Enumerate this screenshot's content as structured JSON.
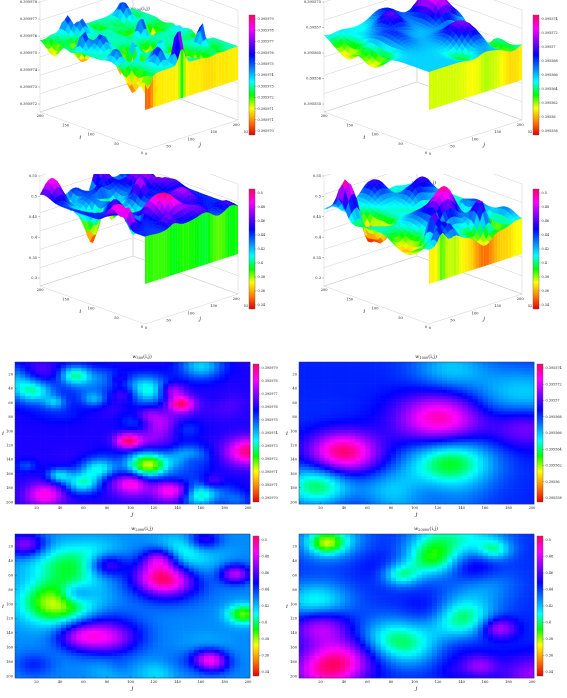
{
  "panels": [
    {
      "id": "p1",
      "kind": "surface",
      "title_main": "w",
      "title_sub": "500",
      "title_tail": "(i,j)",
      "xlabel": "j",
      "ylabel": "i",
      "zticks": [
        "0.395978",
        "0.395977",
        "0.395976",
        "0.395975",
        "0.395974",
        "0.395973",
        "0.395972"
      ],
      "xticks": [
        "0",
        "50",
        "100",
        "150",
        "200"
      ],
      "yticks": [
        "0",
        "50",
        "100",
        "150",
        "200"
      ],
      "cbar_ticks": [
        "0.395979",
        "0.395978",
        "0.395977",
        "0.395976",
        "0.395975",
        "0.395974",
        "0.395973",
        "0.395972",
        "0.395971",
        "0.395971",
        "0.395970"
      ],
      "right_tag": "52"
    },
    {
      "id": "p2",
      "kind": "surface",
      "title_main": "w",
      "title_sub": "1000",
      "title_tail": "(i,j)",
      "xlabel": "j",
      "ylabel": "i",
      "zticks": [
        "0.395575",
        "0.39557",
        "0.395565",
        "0.39556",
        "0.395555"
      ],
      "xticks": [
        "0",
        "50",
        "100",
        "150",
        "200"
      ],
      "yticks": [
        "0",
        "50",
        "100",
        "150",
        "200"
      ],
      "cbar_ticks": [
        "0.395574",
        "0.395572",
        "0.39557",
        "0.395568",
        "0.395566",
        "0.395564",
        "0.395562",
        "0.39556",
        "0.395558"
      ],
      "right_tag": "52"
    },
    {
      "id": "p3",
      "kind": "surface",
      "title_main": "w",
      "title_sub": "2000",
      "title_tail": "(i,j)",
      "xlabel": "j",
      "ylabel": "i",
      "zticks": [
        "0.55",
        "0.5",
        "0.45",
        "0.4",
        "0.35",
        "0.3"
      ],
      "xticks": [
        "0",
        "50",
        "100",
        "150",
        "200"
      ],
      "yticks": [
        "0",
        "50",
        "100",
        "150",
        "200"
      ],
      "cbar_ticks": [
        "0.5",
        "0.48",
        "0.46",
        "0.44",
        "0.42",
        "0.4",
        "0.38",
        "0.36",
        "0.34"
      ],
      "right_tag": "52"
    },
    {
      "id": "p4",
      "kind": "surface",
      "title_main": "w",
      "title_sub": "20000",
      "title_tail": "(i,j)",
      "xlabel": "j",
      "ylabel": "i",
      "zticks": [
        "0.55",
        "0.5",
        "0.45",
        "0.4",
        "0.35",
        "0.3"
      ],
      "xticks": [
        "0",
        "50",
        "100",
        "150",
        "200"
      ],
      "yticks": [
        "0",
        "50",
        "100",
        "150",
        "200"
      ],
      "cbar_ticks": [
        "0.5",
        "0.48",
        "0.46",
        "0.44",
        "0.42",
        "0.4",
        "0.38",
        "0.36",
        "0.34"
      ],
      "right_tag": "52"
    },
    {
      "id": "p5",
      "kind": "heatmap",
      "title_main": "w",
      "title_sub": "500",
      "title_tail": "(i,j)",
      "xlabel": "j",
      "ylabel": "i",
      "xticks": [
        "20",
        "40",
        "60",
        "80",
        "100",
        "120",
        "140",
        "160",
        "180",
        "200"
      ],
      "yticks": [
        "20",
        "40",
        "60",
        "80",
        "100",
        "120",
        "140",
        "160",
        "180",
        "200"
      ],
      "cbar_ticks": [
        "0.395979",
        "0.395978",
        "0.395977",
        "0.395976",
        "0.395975",
        "0.395974",
        "0.395973",
        "0.395972",
        "0.395971",
        "0.395971",
        "0.395970"
      ]
    },
    {
      "id": "p6",
      "kind": "heatmap",
      "title_main": "w",
      "title_sub": "1000",
      "title_tail": "(i,j)",
      "xlabel": "j",
      "ylabel": "i",
      "xticks": [
        "20",
        "40",
        "60",
        "80",
        "100",
        "120",
        "140",
        "160",
        "180",
        "200"
      ],
      "yticks": [
        "20",
        "40",
        "60",
        "80",
        "100",
        "120",
        "140",
        "160",
        "180",
        "200"
      ],
      "cbar_ticks": [
        "0.395574",
        "0.395572",
        "0.39557",
        "0.395568",
        "0.395566",
        "0.395564",
        "0.395562",
        "0.39556",
        "0.395558"
      ]
    },
    {
      "id": "p7",
      "kind": "heatmap",
      "title_main": "w",
      "title_sub": "2000",
      "title_tail": "(i,j)",
      "xlabel": "j",
      "ylabel": "i",
      "xticks": [
        "20",
        "40",
        "60",
        "80",
        "100",
        "120",
        "140",
        "160",
        "180",
        "200"
      ],
      "yticks": [
        "20",
        "40",
        "60",
        "80",
        "100",
        "120",
        "140",
        "160",
        "180",
        "200"
      ],
      "cbar_ticks": [
        "0.5",
        "0.48",
        "0.46",
        "0.44",
        "0.42",
        "0.4",
        "0.38",
        "0.36",
        "0.34"
      ]
    },
    {
      "id": "p8",
      "kind": "heatmap",
      "title_main": "w",
      "title_sub": "20000",
      "title_tail": "(i,j)",
      "xlabel": "j",
      "ylabel": "i",
      "xticks": [
        "20",
        "40",
        "60",
        "80",
        "100",
        "120",
        "140",
        "160",
        "180",
        "200"
      ],
      "yticks": [
        "20",
        "40",
        "60",
        "80",
        "100",
        "120",
        "140",
        "160",
        "180",
        "200"
      ],
      "cbar_ticks": [
        "0.5",
        "0.48",
        "0.46",
        "0.44",
        "0.42",
        "0.4",
        "0.38",
        "0.36",
        "0.34"
      ]
    }
  ],
  "chart_data": [
    {
      "type": "area",
      "title": "w500(i,j)",
      "xlabel": "j",
      "ylabel": "i",
      "xlim": [
        0,
        200
      ],
      "ylim": [
        0,
        200
      ],
      "zlim": [
        0.395972,
        0.395978
      ]
    },
    {
      "type": "area",
      "title": "w1000(i,j)",
      "xlabel": "j",
      "ylabel": "i",
      "xlim": [
        0,
        200
      ],
      "ylim": [
        0,
        200
      ],
      "zlim": [
        0.395555,
        0.395575
      ]
    },
    {
      "type": "area",
      "title": "w2000(i,j)",
      "xlabel": "j",
      "ylabel": "i",
      "xlim": [
        0,
        200
      ],
      "ylim": [
        0,
        200
      ],
      "zlim": [
        0.3,
        0.55
      ]
    },
    {
      "type": "area",
      "title": "w20000(i,j)",
      "xlabel": "j",
      "ylabel": "i",
      "xlim": [
        0,
        200
      ],
      "ylim": [
        0,
        200
      ],
      "zlim": [
        0.3,
        0.55
      ]
    },
    {
      "type": "heatmap",
      "title": "w500(i,j)",
      "xlabel": "j",
      "ylabel": "i",
      "xlim": [
        0,
        200
      ],
      "ylim": [
        0,
        200
      ]
    },
    {
      "type": "heatmap",
      "title": "w1000(i,j)",
      "xlabel": "j",
      "ylabel": "i",
      "xlim": [
        0,
        200
      ],
      "ylim": [
        0,
        200
      ]
    },
    {
      "type": "heatmap",
      "title": "w2000(i,j)",
      "xlabel": "j",
      "ylabel": "i",
      "xlim": [
        0,
        200
      ],
      "ylim": [
        0,
        200
      ]
    },
    {
      "type": "heatmap",
      "title": "w20000(i,j)",
      "xlabel": "j",
      "ylabel": "i",
      "xlim": [
        0,
        200
      ],
      "ylim": [
        0,
        200
      ]
    }
  ],
  "colormap": [
    "#e60000",
    "#ff8000",
    "#ffff00",
    "#00ff00",
    "#00ffff",
    "#0080ff",
    "#0000ff",
    "#8000ff",
    "#ff00ff",
    "#ff0066"
  ]
}
